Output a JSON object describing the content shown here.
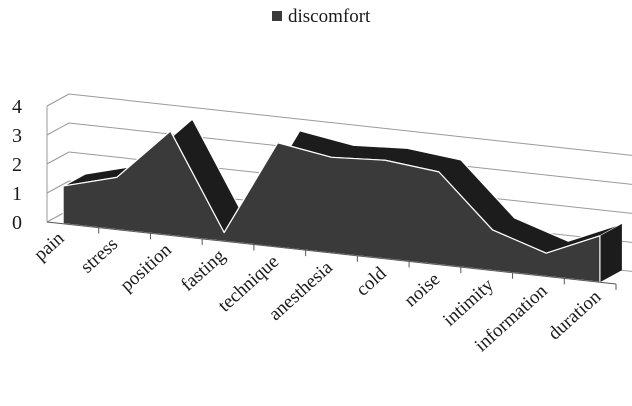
{
  "chart_data": {
    "type": "area",
    "title": "",
    "xlabel": "",
    "ylabel": "",
    "ylim": [
      0,
      4
    ],
    "yticks": [
      "0",
      "1",
      "2",
      "3",
      "4"
    ],
    "grid": true,
    "legend_position": "top-center",
    "categories": [
      "pain",
      "stress",
      "position",
      "fasting",
      "technique",
      "anesthesia",
      "cold",
      "noise",
      "intimity",
      "information",
      "duration"
    ],
    "series": [
      {
        "name": "discomfort",
        "values": [
          1.3,
          1.8,
          3.6,
          0.3,
          3.6,
          3.3,
          3.4,
          3.2,
          1.4,
          0.8,
          1.6
        ]
      }
    ],
    "colors": {
      "area": "#3a3a3a",
      "top": "#1c1c1c",
      "grid": "#9a9a9a",
      "axis": "#555555"
    }
  }
}
